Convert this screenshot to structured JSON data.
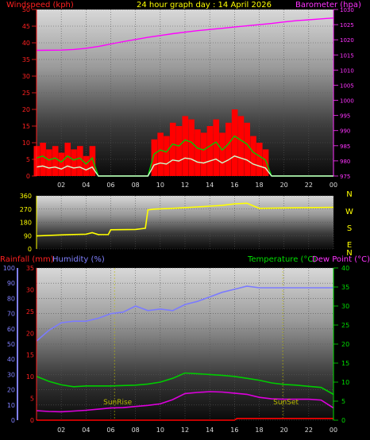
{
  "header": {
    "title": "24 hour graph day : 14 April 2026",
    "wind_label": "Windspeed (kph)",
    "baro_label": "Barometer (hpa)"
  },
  "rain_header": {
    "rain_label": "Rainfall (mm)",
    "hum_label": "Humidity (%)",
    "temp_label": "Temperature (°C)",
    "dew_label": "Dew Point (°C)"
  },
  "colors": {
    "wind": "#ff0000",
    "wind_avg": "#00cc00",
    "wind_light": "#ccffcc",
    "baro": "#ff00ff",
    "direction": "#ffff00",
    "humidity": "#7b7bff",
    "temperature": "#00cc00",
    "dewpoint": "#dd00dd",
    "rain": "#ff0000",
    "sun": "#bbbb00"
  },
  "chart_data": [
    {
      "type": "line",
      "name": "wind-barometer",
      "x_ticks": [
        "02",
        "04",
        "06",
        "08",
        "10",
        "12",
        "14",
        "16",
        "18",
        "20",
        "22",
        "00"
      ],
      "ylim_left": [
        0,
        50
      ],
      "yticks_left": [
        0,
        5,
        10,
        15,
        20,
        25,
        30,
        35,
        40,
        45,
        50
      ],
      "ylim_right": [
        975,
        1030
      ],
      "yticks_right": [
        975,
        980,
        985,
        990,
        995,
        1000,
        1005,
        1010,
        1015,
        1020,
        1025,
        1030
      ],
      "series": [
        {
          "name": "Windspeed (kph)",
          "axis": "left",
          "x": [
            0,
            0.5,
            1,
            1.5,
            2,
            2.5,
            3,
            3.5,
            4,
            4.5,
            5,
            5.5,
            6,
            6.5,
            7,
            7.5,
            8,
            8.5,
            9,
            9.5,
            10,
            10.5,
            11,
            11.5,
            12,
            12.5,
            13,
            13.5,
            14,
            14.5,
            15,
            15.5,
            16,
            16.5,
            17,
            17.5,
            18,
            18.5,
            19,
            19.5,
            20,
            20.5,
            21,
            21.5,
            22,
            22.5,
            23,
            23.5,
            24
          ],
          "y": [
            9,
            10,
            8,
            9,
            7,
            10,
            8,
            9,
            6,
            9,
            0,
            0,
            0,
            0,
            0,
            0,
            0,
            0,
            0,
            11,
            13,
            12,
            16,
            15,
            18,
            17,
            14,
            13,
            15,
            17,
            13,
            16,
            20,
            18,
            16,
            12,
            10,
            8,
            0,
            0,
            0,
            0,
            0,
            0,
            0,
            0,
            0,
            0,
            0
          ]
        },
        {
          "name": "Barometer (hpa)",
          "axis": "right",
          "x": [
            0,
            2,
            3,
            4,
            5,
            6,
            7,
            8,
            9,
            10,
            11,
            12,
            13,
            14,
            15,
            16,
            17,
            18,
            19,
            20,
            21,
            22,
            23,
            24
          ],
          "y": [
            1016.5,
            1016.6,
            1016.8,
            1017.2,
            1017.8,
            1018.6,
            1019.4,
            1020.1,
            1020.8,
            1021.4,
            1022.0,
            1022.5,
            1023.0,
            1023.4,
            1023.8,
            1024.2,
            1024.6,
            1025.0,
            1025.4,
            1025.9,
            1026.3,
            1026.6,
            1026.9,
            1027.2
          ]
        }
      ]
    },
    {
      "type": "line",
      "name": "wind-direction",
      "x_ticks": [
        "02",
        "04",
        "06",
        "08",
        "10",
        "12",
        "14",
        "16",
        "18",
        "20",
        "22",
        "00"
      ],
      "ylim_left": [
        0,
        360
      ],
      "yticks_left": [
        0,
        90,
        180,
        270,
        360
      ],
      "right_labels": [
        "N",
        "W",
        "S",
        "E",
        "N"
      ],
      "series": [
        {
          "name": "Wind direction",
          "x": [
            0,
            1,
            2,
            3,
            4,
            4.5,
            5,
            5.8,
            6,
            8,
            8.8,
            9,
            9.5,
            10,
            11,
            12,
            13,
            14,
            15,
            16,
            17,
            18,
            20,
            22,
            24
          ],
          "y": [
            88,
            92,
            95,
            98,
            100,
            110,
            97,
            98,
            130,
            132,
            140,
            265,
            270,
            272,
            275,
            280,
            285,
            290,
            295,
            305,
            310,
            275,
            278,
            280,
            282
          ]
        }
      ]
    },
    {
      "type": "line",
      "name": "temperature-humidity-rain",
      "x_ticks": [
        "02",
        "04",
        "06",
        "08",
        "10",
        "12",
        "14",
        "16",
        "18",
        "20",
        "22",
        "00"
      ],
      "ylim_humidity": [
        0,
        100
      ],
      "yticks_humidity": [
        0,
        10,
        20,
        30,
        40,
        50,
        60,
        70,
        80,
        90,
        100
      ],
      "ylim_rain": [
        0,
        35
      ],
      "yticks_rain": [
        0,
        5,
        10,
        15,
        20,
        25,
        30,
        35
      ],
      "ylim_temp": [
        0,
        40
      ],
      "yticks_temp": [
        0,
        5,
        10,
        15,
        20,
        25,
        30,
        35,
        40
      ],
      "annotations": [
        {
          "text": "SunRise",
          "x": 6.3
        },
        {
          "text": "SunSet",
          "x": 19.9
        }
      ],
      "series": [
        {
          "name": "Humidity (%)",
          "axis": "humidity",
          "x": [
            0,
            1,
            2,
            3,
            4,
            5,
            6,
            7,
            8,
            9,
            10,
            11,
            12,
            13,
            14,
            15,
            16,
            17,
            18,
            19,
            20,
            21,
            22,
            23,
            24
          ],
          "y": [
            52,
            59,
            64,
            65,
            65,
            67,
            70,
            71,
            75,
            72,
            73,
            72,
            76,
            78,
            81,
            84,
            86,
            88,
            87,
            87,
            87,
            87,
            87,
            87,
            87
          ]
        },
        {
          "name": "Temperature (°C)",
          "axis": "temp",
          "x": [
            0,
            1,
            2,
            3,
            4,
            5,
            6,
            7,
            8,
            9,
            10,
            11,
            12,
            13,
            14,
            15,
            16,
            17,
            18,
            19,
            20,
            21,
            22,
            23,
            24
          ],
          "y": [
            11.5,
            10.2,
            9.3,
            8.8,
            9.0,
            9.0,
            9.0,
            9.1,
            9.2,
            9.5,
            10.0,
            11.0,
            12.4,
            12.2,
            12.0,
            11.8,
            11.5,
            11.0,
            10.5,
            9.8,
            9.4,
            9.2,
            8.9,
            8.6,
            6.8
          ]
        },
        {
          "name": "Dew Point (°C)",
          "axis": "temp",
          "x": [
            0,
            1,
            2,
            3,
            4,
            5,
            6,
            7,
            8,
            9,
            10,
            11,
            12,
            13,
            14,
            15,
            16,
            17,
            18,
            19,
            20,
            21,
            22,
            23,
            24
          ],
          "y": [
            2.5,
            2.3,
            2.2,
            2.4,
            2.6,
            2.9,
            3.2,
            3.3,
            3.6,
            3.9,
            4.3,
            5.4,
            7.0,
            7.3,
            7.5,
            7.4,
            7.1,
            6.8,
            6.0,
            5.6,
            5.5,
            5.5,
            5.5,
            5.3,
            3.2
          ]
        },
        {
          "name": "Rainfall (mm)",
          "axis": "rain",
          "x": [
            0,
            12,
            16,
            16.2,
            24
          ],
          "y": [
            0,
            0,
            0,
            0.4,
            0.4
          ]
        }
      ]
    }
  ]
}
